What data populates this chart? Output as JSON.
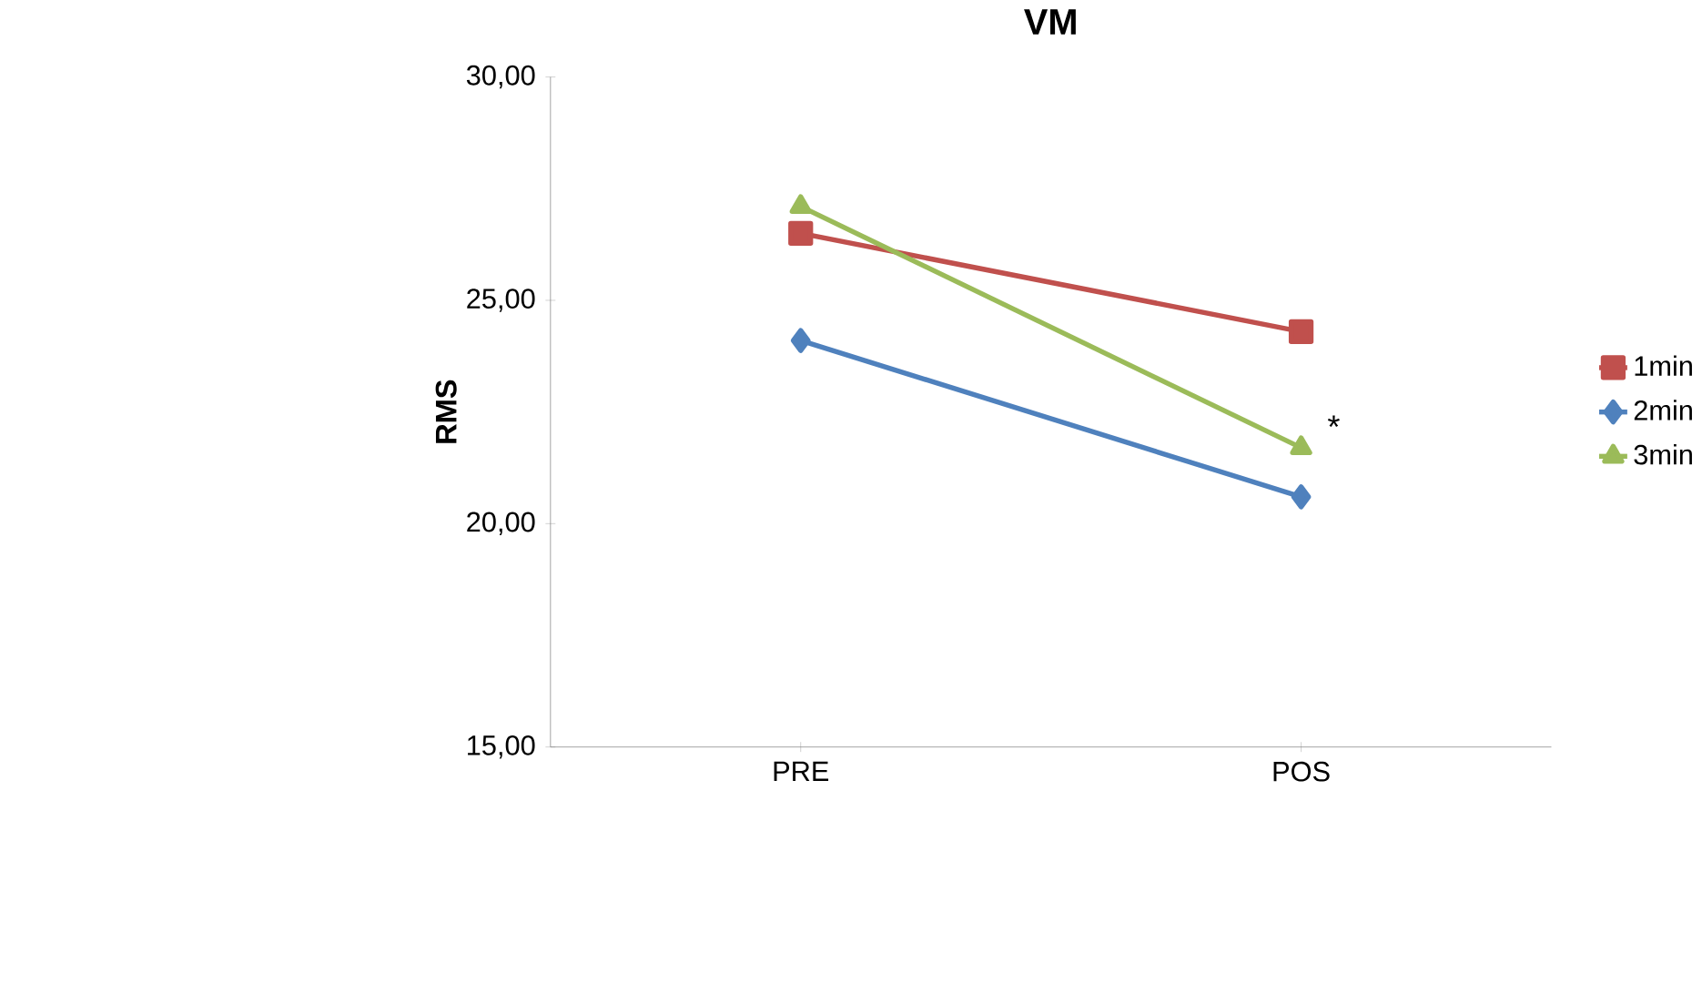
{
  "chart_data": {
    "type": "line",
    "title": "VM",
    "ylabel": "RMS",
    "categories": [
      "PRE",
      "POS"
    ],
    "series": [
      {
        "name": "1min",
        "color": "#c0504d",
        "marker": "square",
        "values": [
          26.5,
          24.3
        ]
      },
      {
        "name": "2min",
        "color": "#4f81bd",
        "marker": "diamond",
        "values": [
          24.1,
          20.6
        ]
      },
      {
        "name": "3min",
        "color": "#9bbb59",
        "marker": "triangle",
        "values": [
          27.1,
          21.7
        ]
      }
    ],
    "ylim": [
      15,
      30
    ],
    "yticks": [
      {
        "value": 15,
        "label": "15,00"
      },
      {
        "value": 20,
        "label": "20,00"
      },
      {
        "value": 25,
        "label": "25,00"
      },
      {
        "value": 30,
        "label": "30,00"
      }
    ],
    "annotations": [
      {
        "text": "*",
        "x": "POS",
        "y": 21.7
      }
    ],
    "legend": "right",
    "grid": false,
    "line_style": "solid"
  }
}
